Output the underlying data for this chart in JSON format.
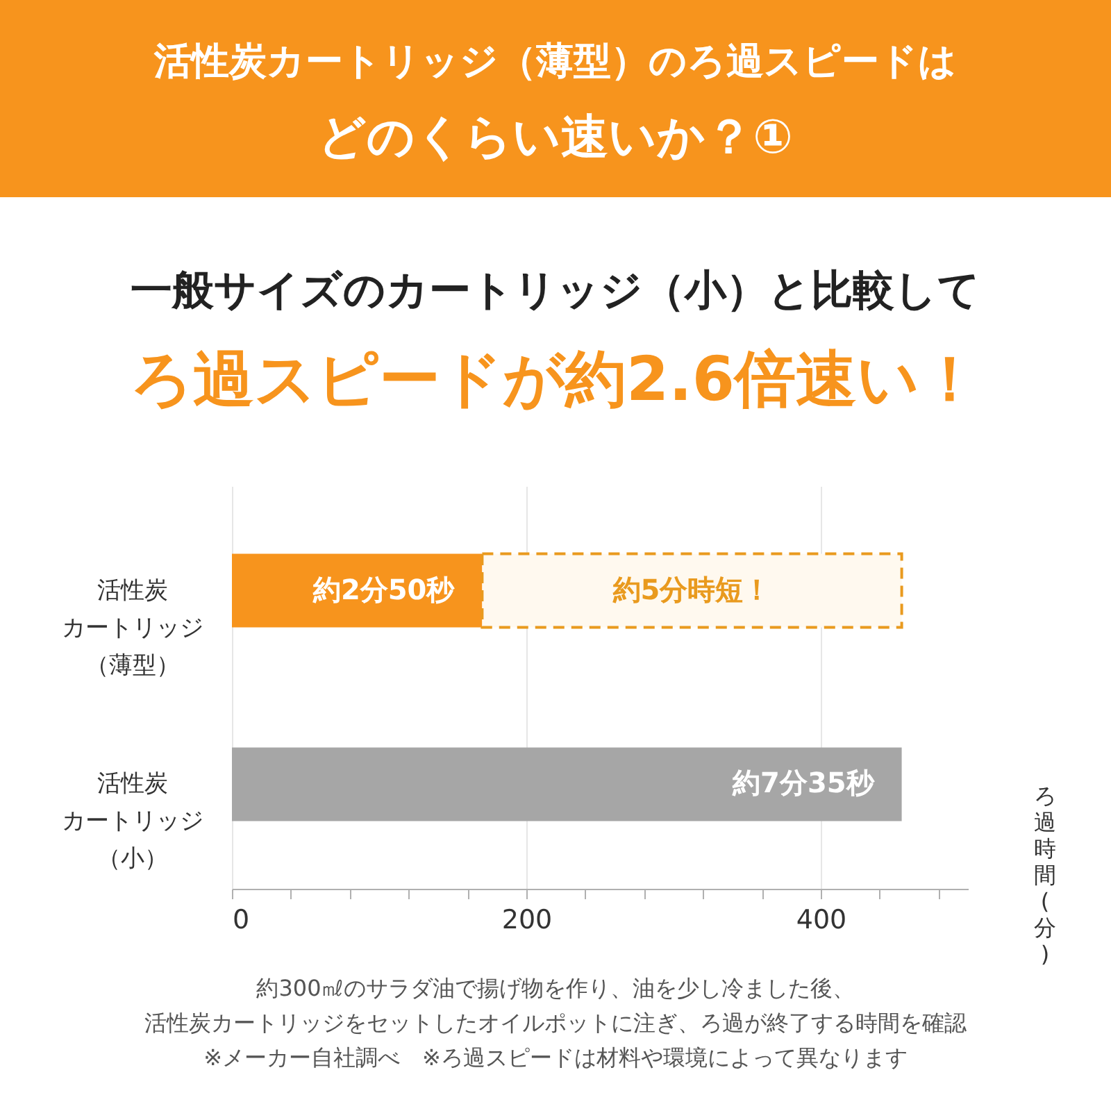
{
  "chart_data": {
    "type": "bar",
    "orientation": "horizontal",
    "stacked": true,
    "title": "活性炭カートリッジ（薄型）のろ過スピードはどのくらい速いか？①",
    "subtitle": "一般サイズのカートリッジ（小）と比較してろ過スピードが約2.6倍速い！",
    "categories": [
      "活性炭カートリッジ（薄型）",
      "活性炭カートリッジ（小）"
    ],
    "series": [
      {
        "colors": [
          "#f7941d",
          "#a6a6a6"
        ],
        "values": [
          170,
          455
        ],
        "value_labels": [
          "約2分50秒",
          "約7分35秒"
        ]
      },
      {
        "color": "#fff9ef",
        "line_style": "dashed",
        "values": [
          285,
          null
        ],
        "value_labels": [
          "約5分時短！",
          null
        ]
      }
    ],
    "xlabel": "ろ過時間(分)",
    "xlim": [
      0,
      500
    ],
    "xticks": [
      0,
      {
        "value": 40,
        "label": null
      },
      {
        "value": 80,
        "label": null
      },
      {
        "value": 120,
        "label": null
      },
      {
        "value": 160,
        "label": null
      },
      200,
      {
        "value": 240,
        "label": null
      },
      {
        "value": 280,
        "label": null
      },
      {
        "value": 320,
        "label": null
      },
      {
        "value": 360,
        "label": null
      },
      400,
      {
        "value": 440,
        "label": null
      },
      {
        "value": 480,
        "label": null
      }
    ],
    "grid": "x",
    "annotations": [
      "約300㎖のサラダ油で揚げ物を作り、油を少し冷ました後、",
      "活性炭カートリッジをセットしたオイルポットに注ぎ、ろ過が終了する時間を確認",
      "※メーカー自社調べ　※ろ過スピードは材料や環境によって異なります"
    ]
  }
}
